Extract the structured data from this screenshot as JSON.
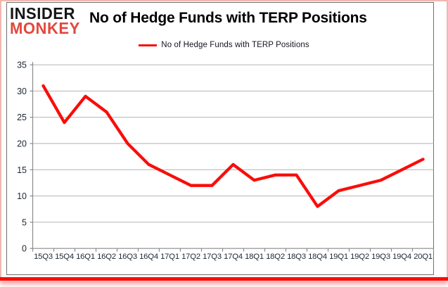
{
  "logo": {
    "line1": "INSIDER",
    "line2": "MONKEY"
  },
  "header": {
    "title": "No of Hedge Funds with TERP Positions"
  },
  "legend": {
    "label": "No of Hedge Funds with TERP Positions",
    "swatch_color": "#f90d0a"
  },
  "chart_data": {
    "type": "line",
    "title": "No of Hedge Funds with TERP Positions",
    "categories": [
      "15Q3",
      "15Q4",
      "16Q1",
      "16Q2",
      "16Q3",
      "16Q4",
      "17Q1",
      "17Q2",
      "17Q3",
      "17Q4",
      "18Q1",
      "18Q2",
      "18Q3",
      "18Q4",
      "19Q1",
      "19Q2",
      "19Q3",
      "19Q4",
      "20Q1"
    ],
    "series": [
      {
        "name": "No of Hedge Funds with TERP Positions",
        "color": "#f90d0a",
        "values": [
          31,
          24,
          29,
          26,
          20,
          16,
          14,
          12,
          12,
          16,
          13,
          14,
          14,
          8,
          11,
          12,
          13,
          15,
          17
        ]
      }
    ],
    "ylim": [
      0,
      35
    ],
    "yticks": [
      0,
      5,
      10,
      15,
      20,
      25,
      30,
      35
    ],
    "grid": true,
    "legend_position": "top"
  },
  "colors": {
    "line_red": "#f90d0a",
    "logo_red": "#e2483d",
    "grid": "#b2b2b2",
    "axis": "#8a8a8a",
    "tick_label": "#1c2734",
    "border_pink": "#f3b7af",
    "bottom_bar_red": "#f90d0a"
  }
}
